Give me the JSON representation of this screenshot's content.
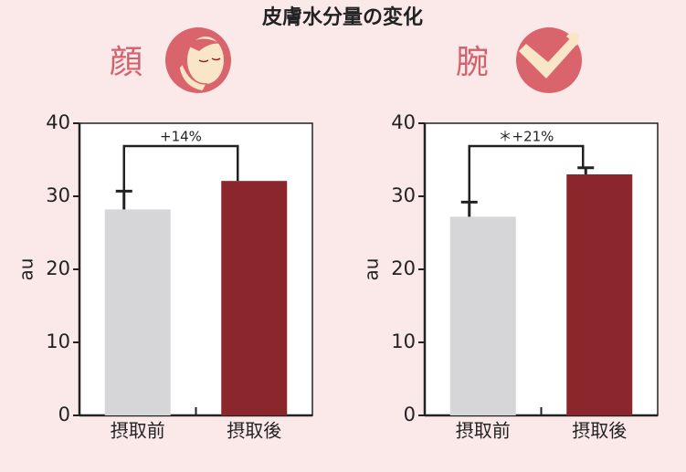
{
  "title": "皮膚水分量の変化",
  "chart_data": [
    {
      "type": "bar",
      "subtitle": "顔",
      "ylabel": "au",
      "annotation": "+14%",
      "categories": [
        "摂取前",
        "摂取後"
      ],
      "values": [
        28.2,
        32.1
      ],
      "errors": [
        2.5,
        null
      ],
      "colors": [
        "#d6d6d9",
        "#8b262c"
      ],
      "ylim": [
        0,
        40
      ],
      "yticks": [
        0,
        10,
        20,
        30,
        40
      ]
    },
    {
      "type": "bar",
      "subtitle": "腕",
      "ylabel": "au",
      "annotation": "＊+21%",
      "categories": [
        "摂取前",
        "摂取後"
      ],
      "values": [
        27.2,
        33.0
      ],
      "errors": [
        2.0,
        0.9
      ],
      "colors": [
        "#d6d6d9",
        "#8b262c"
      ],
      "ylim": [
        0,
        40
      ],
      "yticks": [
        0,
        10,
        20,
        30,
        40
      ]
    }
  ]
}
